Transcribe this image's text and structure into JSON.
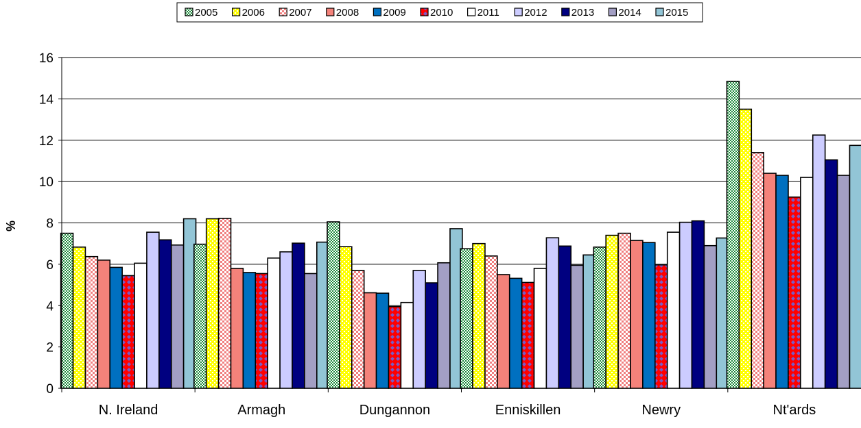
{
  "chart_data": {
    "type": "bar",
    "title": "",
    "xlabel": "",
    "ylabel": "%",
    "ylim": [
      0,
      16
    ],
    "ytick_step": 2,
    "grid": true,
    "legend_placement": "top-center",
    "categories": [
      "N. Ireland",
      "Armagh",
      "Dungannon",
      "Enniskillen",
      "Newry",
      "Nt'ards"
    ],
    "series": [
      {
        "name": "2005",
        "color": "#1a8a3a",
        "pattern": "dots-green",
        "values": [
          7.5,
          6.97,
          8.05,
          6.75,
          6.83,
          14.85
        ]
      },
      {
        "name": "2006",
        "color": "#ffff00",
        "pattern": "dots-yellow",
        "values": [
          6.83,
          8.2,
          6.85,
          7.0,
          7.4,
          13.5
        ]
      },
      {
        "name": "2007",
        "color": "#f08080",
        "pattern": "checker-pink",
        "values": [
          6.37,
          8.22,
          5.7,
          6.4,
          7.5,
          11.4
        ]
      },
      {
        "name": "2008",
        "color": "#f4827a",
        "pattern": "solid",
        "values": [
          6.2,
          5.8,
          4.62,
          5.5,
          7.15,
          10.4
        ]
      },
      {
        "name": "2009",
        "color": "#0070c0",
        "pattern": "solid",
        "values": [
          5.85,
          5.6,
          4.6,
          5.32,
          7.05,
          10.3
        ]
      },
      {
        "name": "2010",
        "color": "#ff0000",
        "pattern": "diamonds-red",
        "values": [
          5.45,
          5.55,
          3.95,
          5.12,
          5.97,
          9.25
        ]
      },
      {
        "name": "2011",
        "color": "#ffffff",
        "pattern": "solid",
        "values": [
          6.05,
          6.3,
          4.15,
          5.8,
          7.55,
          10.2
        ]
      },
      {
        "name": "2012",
        "color": "#ccccff",
        "pattern": "solid",
        "values": [
          7.55,
          6.6,
          5.7,
          7.28,
          8.03,
          12.25
        ]
      },
      {
        "name": "2013",
        "color": "#000080",
        "pattern": "solid",
        "values": [
          7.18,
          7.02,
          5.1,
          6.88,
          8.1,
          11.05
        ]
      },
      {
        "name": "2014",
        "color": "#a39fc4",
        "pattern": "solid",
        "values": [
          6.93,
          5.55,
          6.07,
          5.95,
          6.9,
          10.3
        ]
      },
      {
        "name": "2015",
        "color": "#92c5d6",
        "pattern": "solid",
        "values": [
          8.2,
          7.07,
          7.72,
          6.45,
          7.27,
          11.75
        ]
      }
    ]
  }
}
